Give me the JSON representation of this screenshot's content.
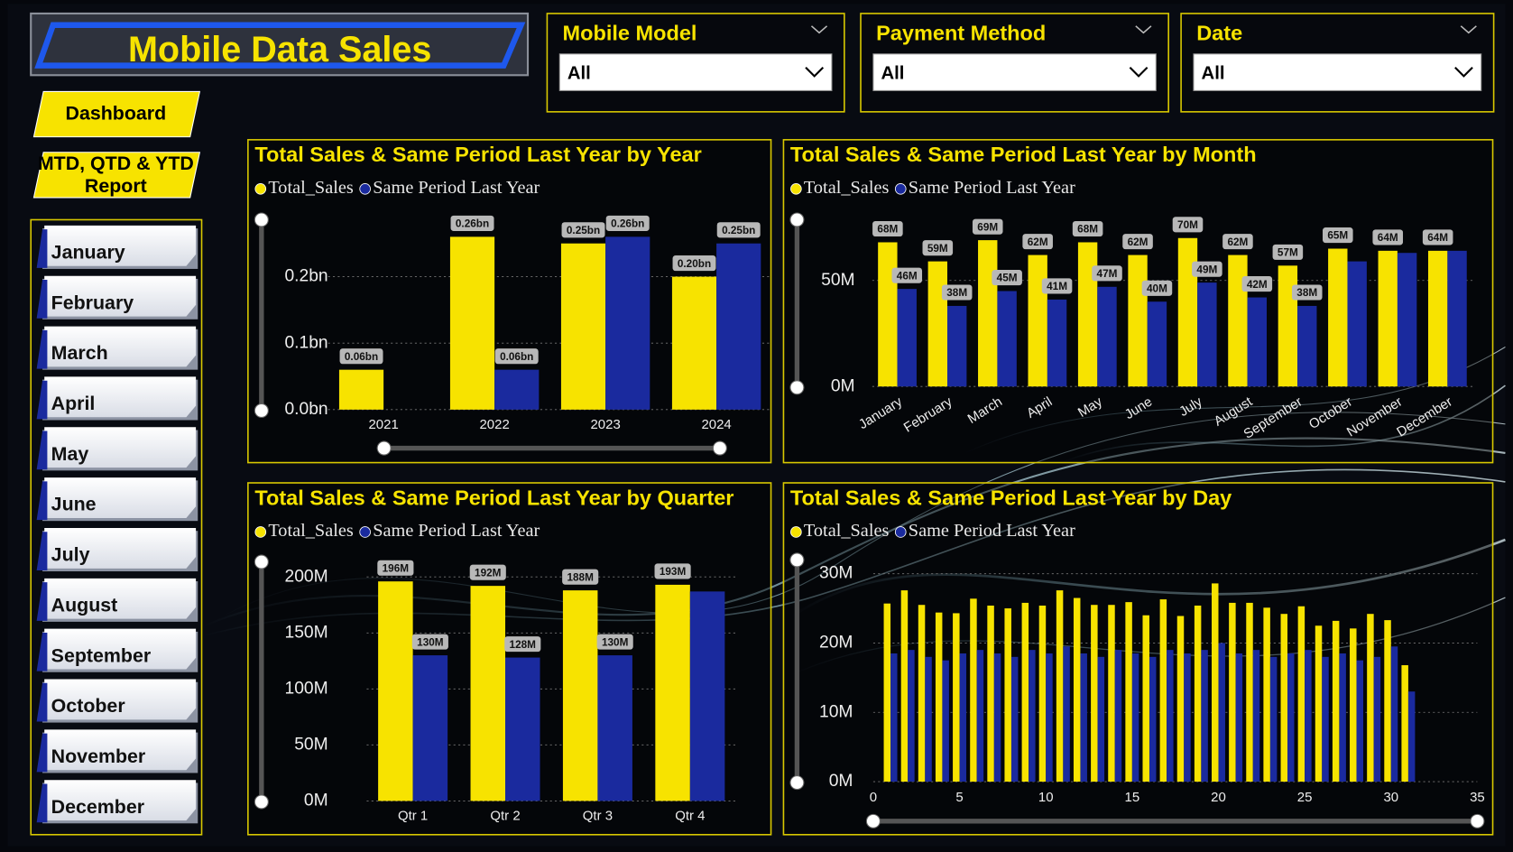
{
  "header": {
    "title": "Mobile Data Sales"
  },
  "nav": [
    {
      "lines": [
        "Dashboard"
      ]
    },
    {
      "lines": [
        "MTD, QTD & YTD",
        "Report"
      ]
    }
  ],
  "filters": [
    {
      "title": "Mobile Model",
      "value": "All"
    },
    {
      "title": "Payment Method",
      "value": "All"
    },
    {
      "title": "Date",
      "value": "All"
    }
  ],
  "months": [
    "January",
    "February",
    "March",
    "April",
    "May",
    "June",
    "July",
    "August",
    "September",
    "October",
    "November",
    "December"
  ],
  "chart_data": [
    {
      "type": "bar",
      "title": "Total Sales & Same Period Last Year by Year",
      "categories": [
        "2021",
        "2022",
        "2023",
        "2024"
      ],
      "series": [
        {
          "name": "Total_Sales",
          "color": "#f7e300",
          "values": [
            0.06,
            0.26,
            0.25,
            0.2
          ],
          "value_labels": [
            "0.06bn",
            "0.26bn",
            "0.25bn",
            "0.20bn"
          ]
        },
        {
          "name": "Same Period Last Year",
          "color": "#1a2a9e",
          "values": [
            null,
            0.06,
            0.26,
            0.25
          ],
          "value_labels": [
            null,
            "0.06bn",
            "0.26bn",
            "0.25bn"
          ]
        }
      ],
      "ylim": [
        0,
        0.29
      ],
      "yticks": [
        {
          "value": 0,
          "label": "0.0bn"
        },
        {
          "value": 0.1,
          "label": "0.1bn"
        },
        {
          "value": 0.2,
          "label": "0.2bn"
        }
      ],
      "grid": true
    },
    {
      "type": "bar",
      "title": "Total Sales & Same Period Last Year by Month",
      "categories": [
        "January",
        "February",
        "March",
        "April",
        "May",
        "June",
        "July",
        "August",
        "September",
        "October",
        "November",
        "December"
      ],
      "series": [
        {
          "name": "Total_Sales",
          "color": "#f7e300",
          "values": [
            68,
            59,
            69,
            62,
            68,
            62,
            70,
            62,
            57,
            65,
            64,
            64
          ],
          "value_labels": [
            "68M",
            "59M",
            "69M",
            "62M",
            "68M",
            "62M",
            "70M",
            "62M",
            "57M",
            "65M",
            "64M",
            "64M"
          ]
        },
        {
          "name": "Same Period Last Year",
          "color": "#1a2a9e",
          "values": [
            46,
            38,
            45,
            41,
            47,
            40,
            49,
            42,
            38,
            59,
            63,
            64
          ],
          "value_labels": [
            "46M",
            "38M",
            "45M",
            "41M",
            "47M",
            "40M",
            "49M",
            "42M",
            "38M",
            null,
            null,
            null
          ]
        }
      ],
      "ylim": [
        0,
        80
      ],
      "yticks": [
        {
          "value": 0,
          "label": "0M"
        },
        {
          "value": 50,
          "label": "50M"
        }
      ],
      "grid": true
    },
    {
      "type": "bar",
      "title": "Total Sales & Same Period Last Year by Quarter",
      "categories": [
        "Qtr 1",
        "Qtr 2",
        "Qtr 3",
        "Qtr 4"
      ],
      "series": [
        {
          "name": "Total_Sales",
          "color": "#f7e300",
          "values": [
            196,
            192,
            188,
            193
          ],
          "value_labels": [
            "196M",
            "192M",
            "188M",
            "193M"
          ]
        },
        {
          "name": "Same Period Last Year",
          "color": "#1a2a9e",
          "values": [
            130,
            128,
            130,
            187
          ],
          "value_labels": [
            "130M",
            "128M",
            "130M",
            null
          ]
        }
      ],
      "ylim": [
        0,
        216
      ],
      "yticks": [
        {
          "value": 0,
          "label": "0M"
        },
        {
          "value": 50,
          "label": "50M"
        },
        {
          "value": 100,
          "label": "100M"
        },
        {
          "value": 150,
          "label": "150M"
        },
        {
          "value": 200,
          "label": "200M"
        }
      ],
      "grid": true
    },
    {
      "type": "bar",
      "title": "Total Sales & Same Period Last Year by Day",
      "x": [
        1,
        2,
        3,
        4,
        5,
        6,
        7,
        8,
        9,
        10,
        11,
        12,
        13,
        14,
        15,
        16,
        17,
        18,
        19,
        20,
        21,
        22,
        23,
        24,
        25,
        26,
        27,
        28,
        29,
        30,
        31
      ],
      "series": [
        {
          "name": "Total_Sales",
          "color": "#f7e300",
          "values": [
            25.7,
            27.6,
            25.5,
            24.4,
            24.3,
            26.4,
            25.4,
            25.0,
            25.8,
            25.4,
            27.6,
            26.5,
            25.5,
            25.5,
            25.9,
            24.0,
            26.3,
            23.9,
            25.4,
            28.6,
            25.8,
            25.8,
            25.1,
            24.2,
            25.3,
            22.5,
            23.2,
            22.1,
            24.2,
            23.3,
            16.8
          ]
        },
        {
          "name": "Same Period Last Year",
          "color": "#1a2a9e",
          "values": [
            18.5,
            19,
            18,
            17.5,
            18.5,
            19,
            18.5,
            18,
            19,
            18.5,
            19.5,
            18.5,
            18,
            19,
            18.5,
            18,
            19,
            18.5,
            19,
            20,
            18.5,
            19,
            18,
            18.5,
            19,
            18,
            18.5,
            17.5,
            18,
            19.5,
            13
          ]
        }
      ],
      "xlim": [
        0,
        35
      ],
      "xticks": [
        0,
        5,
        10,
        15,
        20,
        25,
        30,
        35
      ],
      "ylim": [
        0,
        32.4
      ],
      "yticks": [
        {
          "value": 0,
          "label": "0M"
        },
        {
          "value": 10,
          "label": "10M"
        },
        {
          "value": 20,
          "label": "20M"
        },
        {
          "value": 30,
          "label": "30M"
        }
      ],
      "grid": true
    }
  ]
}
